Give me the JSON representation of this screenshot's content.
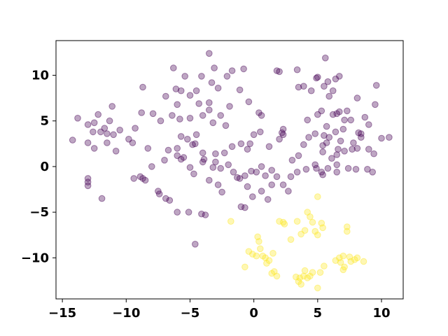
{
  "chart_data": {
    "type": "scatter",
    "title": "",
    "xlabel": "",
    "ylabel": "",
    "xlim": [
      -15.5,
      11.7
    ],
    "ylim": [
      -14.5,
      13.8
    ],
    "xticks": [
      -15,
      -10,
      -5,
      0,
      5,
      10
    ],
    "yticks": [
      -10,
      -5,
      0,
      5,
      10
    ],
    "xtick_labels": [
      "−15",
      "−10",
      "−5",
      "0",
      "5",
      "10"
    ],
    "ytick_labels": [
      "−10",
      "−5",
      "0",
      "5",
      "10"
    ],
    "grid": false,
    "legend": "none",
    "series": [
      {
        "color": "#440154",
        "opacity": 0.35,
        "points": [
          [
            -14.2,
            2.9
          ],
          [
            -13.8,
            5.3
          ],
          [
            -13.0,
            4.6
          ],
          [
            -12.5,
            4.8
          ],
          [
            -12.2,
            5.7
          ],
          [
            -11.7,
            4.2
          ],
          [
            -11.3,
            5.0
          ],
          [
            -11.1,
            6.6
          ],
          [
            -12.6,
            3.8
          ],
          [
            -12.0,
            3.8
          ],
          [
            -11.5,
            3.6
          ],
          [
            -11.0,
            3.5
          ],
          [
            -10.5,
            4.0
          ],
          [
            -13.0,
            2.6
          ],
          [
            -12.5,
            2.0
          ],
          [
            -11.5,
            2.6
          ],
          [
            -10.8,
            1.7
          ],
          [
            -13.0,
            -1.3
          ],
          [
            -13.0,
            -1.7
          ],
          [
            -13.0,
            -2.1
          ],
          [
            -11.9,
            -3.5
          ],
          [
            -9.8,
            3.0
          ],
          [
            -9.3,
            4.2
          ],
          [
            -9.5,
            2.6
          ],
          [
            -8.7,
            8.7
          ],
          [
            -8.8,
            5.9
          ],
          [
            -8.3,
            2.0
          ],
          [
            -7.9,
            5.8
          ],
          [
            -7.3,
            5.0
          ],
          [
            -9.4,
            -1.3
          ],
          [
            -8.9,
            -1.1
          ],
          [
            -8.7,
            -1.3
          ],
          [
            -8.5,
            -1.5
          ],
          [
            -8.0,
            0.0
          ],
          [
            -7.5,
            -2.7
          ],
          [
            -7.4,
            -3.0
          ],
          [
            -6.9,
            -3.5
          ],
          [
            -6.6,
            -3.7
          ],
          [
            -6.0,
            -5.0
          ],
          [
            -5.1,
            -5.0
          ],
          [
            -4.1,
            -5.2
          ],
          [
            -3.8,
            -5.3
          ],
          [
            -6.9,
            7.7
          ],
          [
            -6.3,
            10.8
          ],
          [
            -6.1,
            8.5
          ],
          [
            -5.4,
            9.9
          ],
          [
            -5.7,
            8.3
          ],
          [
            -5.0,
            7.8
          ],
          [
            -4.5,
            8.3
          ],
          [
            -4.1,
            9.9
          ],
          [
            -4.3,
            6.9
          ],
          [
            -3.5,
            7.0
          ],
          [
            -3.3,
            9.2
          ],
          [
            -3.1,
            10.8
          ],
          [
            -2.8,
            8.6
          ],
          [
            -2.1,
            9.9
          ],
          [
            -1.9,
            6.6
          ],
          [
            -1.1,
            8.4
          ],
          [
            -1.7,
            10.5
          ],
          [
            -0.8,
            10.7
          ],
          [
            -0.4,
            7.1
          ],
          [
            -6.4,
            5.6
          ],
          [
            -6.0,
            6.8
          ],
          [
            -5.8,
            5.2
          ],
          [
            -5.0,
            5.3
          ],
          [
            -4.0,
            5.6
          ],
          [
            -3.5,
            6.2
          ],
          [
            -2.6,
            5.6
          ],
          [
            -2.2,
            4.5
          ],
          [
            -3.2,
            4.8
          ],
          [
            -4.5,
            3.5
          ],
          [
            -5.7,
            3.3
          ],
          [
            -5.2,
            3.0
          ],
          [
            -4.8,
            2.4
          ],
          [
            -4.6,
            2.5
          ],
          [
            -6.0,
            2.0
          ],
          [
            -6.7,
            1.8
          ],
          [
            -6.0,
            1.2
          ],
          [
            -5.5,
            1.0
          ],
          [
            -5.7,
            0.8
          ],
          [
            -3.9,
            0.8
          ],
          [
            -4.0,
            1.5
          ],
          [
            -3.0,
            1.4
          ],
          [
            -2.3,
            1.5
          ],
          [
            -1.7,
            2.2
          ],
          [
            -1.0,
            2.5
          ],
          [
            -0.5,
            1.9
          ],
          [
            -0.3,
            2.5
          ],
          [
            0.0,
            3.5
          ],
          [
            0.5,
            3.8
          ],
          [
            0.4,
            5.9
          ],
          [
            0.6,
            5.6
          ],
          [
            1.2,
            2.2
          ],
          [
            2.0,
            3.0
          ],
          [
            2.3,
            3.5
          ],
          [
            -7.0,
            0.7
          ],
          [
            -5.0,
            -0.1
          ],
          [
            -4.7,
            -0.8
          ],
          [
            -3.5,
            -1.5
          ],
          [
            -3.0,
            0.5
          ],
          [
            -2.6,
            -0.2
          ],
          [
            -2.0,
            0.2
          ],
          [
            -1.6,
            -0.6
          ],
          [
            -1.1,
            -1.3
          ],
          [
            -0.7,
            -1.0
          ],
          [
            -0.5,
            -2.2
          ],
          [
            -0.2,
            -0.5
          ],
          [
            0.2,
            -0.6
          ],
          [
            0.6,
            0.0
          ],
          [
            0.9,
            -1.0
          ],
          [
            1.4,
            -0.4
          ],
          [
            1.8,
            -1.1
          ],
          [
            -4.0,
            0.5
          ],
          [
            -3.2,
            -0.1
          ],
          [
            -2.8,
            -2.0
          ],
          [
            -2.5,
            -2.8
          ],
          [
            -1.3,
            -1.2
          ],
          [
            -1.0,
            -4.4
          ],
          [
            -0.7,
            -4.5
          ],
          [
            -0.1,
            -3.3
          ],
          [
            0.6,
            -2.7
          ],
          [
            1.1,
            -3.6
          ],
          [
            1.4,
            -2.0
          ],
          [
            2.3,
            -2.0
          ],
          [
            2.7,
            -2.7
          ],
          [
            2.9,
            -1.1
          ],
          [
            3.4,
            -0.6
          ],
          [
            4.1,
            -0.3
          ],
          [
            4.9,
            -0.2
          ],
          [
            -4.6,
            -8.5
          ],
          [
            -3.5,
            12.4
          ],
          [
            1.8,
            10.5
          ],
          [
            2.0,
            10.4
          ],
          [
            2.2,
            3.7
          ],
          [
            2.3,
            4.1
          ],
          [
            3.0,
            0.7
          ],
          [
            3.5,
            1.2
          ],
          [
            3.9,
            2.4
          ],
          [
            4.3,
            3.2
          ],
          [
            4.8,
            3.6
          ],
          [
            3.4,
            10.6
          ],
          [
            3.5,
            8.7
          ],
          [
            3.9,
            8.8
          ],
          [
            4.5,
            8.3
          ],
          [
            4.9,
            9.7
          ],
          [
            5.0,
            9.8
          ],
          [
            5.6,
            11.9
          ],
          [
            5.5,
            8.8
          ],
          [
            5.8,
            9.3
          ],
          [
            6.4,
            9.6
          ],
          [
            6.7,
            9.9
          ],
          [
            6.2,
            5.7
          ],
          [
            6.7,
            6.0
          ],
          [
            7.1,
            5.1
          ],
          [
            7.3,
            6.1
          ],
          [
            7.6,
            5.1
          ],
          [
            8.1,
            7.5
          ],
          [
            8.4,
            3.6
          ],
          [
            8.4,
            3.2
          ],
          [
            8.7,
            5.4
          ],
          [
            9.0,
            4.6
          ],
          [
            9.5,
            6.8
          ],
          [
            9.6,
            8.9
          ],
          [
            10.0,
            3.1
          ],
          [
            10.6,
            3.2
          ],
          [
            4.2,
            5.1
          ],
          [
            5.0,
            5.7
          ],
          [
            5.3,
            6.1
          ],
          [
            5.7,
            4.4
          ],
          [
            5.9,
            7.7
          ],
          [
            6.2,
            8.3
          ],
          [
            6.5,
            5.8
          ],
          [
            5.5,
            3.4
          ],
          [
            5.9,
            3.2
          ],
          [
            6.4,
            3.8
          ],
          [
            5.4,
            2.3
          ],
          [
            5.7,
            2.6
          ],
          [
            6.6,
            1.9
          ],
          [
            6.8,
            2.8
          ],
          [
            7.0,
            4.1
          ],
          [
            7.8,
            2.6
          ],
          [
            8.2,
            3.7
          ],
          [
            8.1,
            2.0
          ],
          [
            5.4,
            1.6
          ],
          [
            6.1,
            0.9
          ],
          [
            6.5,
            1.3
          ],
          [
            7.1,
            1.7
          ],
          [
            7.7,
            1.9
          ],
          [
            9.0,
            1.9
          ],
          [
            9.4,
            1.4
          ],
          [
            4.8,
            0.2
          ],
          [
            5.8,
            -0.2
          ],
          [
            6.5,
            0.2
          ],
          [
            7.4,
            -0.2
          ],
          [
            8.0,
            -0.3
          ],
          [
            8.9,
            -0.3
          ],
          [
            9.3,
            -0.6
          ],
          [
            5.3,
            -0.6
          ],
          [
            6.5,
            -0.6
          ],
          [
            5.4,
            -0.9
          ]
        ]
      },
      {
        "color": "#fde725",
        "opacity": 0.35,
        "points": [
          [
            -1.8,
            -6.0
          ],
          [
            -0.7,
            -11.0
          ],
          [
            -0.4,
            -9.3
          ],
          [
            -0.1,
            -9.6
          ],
          [
            0.2,
            -9.8
          ],
          [
            0.3,
            -7.7
          ],
          [
            0.4,
            -8.2
          ],
          [
            0.5,
            -9.0
          ],
          [
            0.7,
            -9.8
          ],
          [
            0.9,
            -10.0
          ],
          [
            1.0,
            -10.6
          ],
          [
            1.2,
            -10.3
          ],
          [
            1.5,
            -9.5
          ],
          [
            1.4,
            -11.7
          ],
          [
            1.6,
            -11.5
          ],
          [
            1.8,
            -12.0
          ],
          [
            2.0,
            -6.0
          ],
          [
            2.3,
            -6.1
          ],
          [
            2.4,
            -6.3
          ],
          [
            2.9,
            -8.0
          ],
          [
            3.3,
            -12.1
          ],
          [
            3.5,
            -12.6
          ],
          [
            3.6,
            -12.2
          ],
          [
            3.7,
            -12.9
          ],
          [
            3.9,
            -12.0
          ],
          [
            4.0,
            -11.4
          ],
          [
            3.4,
            -6.0
          ],
          [
            3.7,
            -7.4
          ],
          [
            4.0,
            -7.0
          ],
          [
            4.2,
            -5.0
          ],
          [
            4.4,
            -5.5
          ],
          [
            4.6,
            -6.1
          ],
          [
            4.8,
            -7.1
          ],
          [
            5.0,
            -7.5
          ],
          [
            5.3,
            -6.2
          ],
          [
            5.4,
            -6.7
          ],
          [
            5.0,
            -3.3
          ],
          [
            4.2,
            -12.2
          ],
          [
            4.4,
            -12.0
          ],
          [
            4.6,
            -11.6
          ],
          [
            5.0,
            -13.3
          ],
          [
            5.2,
            -11.6
          ],
          [
            5.5,
            -10.9
          ],
          [
            6.4,
            -10.3
          ],
          [
            6.7,
            -10.0
          ],
          [
            6.8,
            -10.5
          ],
          [
            7.0,
            -9.8
          ],
          [
            7.1,
            -11.0
          ],
          [
            7.3,
            -6.6
          ],
          [
            7.3,
            -7.1
          ],
          [
            7.5,
            -9.9
          ],
          [
            7.6,
            -10.4
          ],
          [
            7.9,
            -10.2
          ],
          [
            8.1,
            -10.0
          ],
          [
            8.6,
            -10.4
          ],
          [
            7.0,
            -11.3
          ]
        ]
      }
    ]
  }
}
